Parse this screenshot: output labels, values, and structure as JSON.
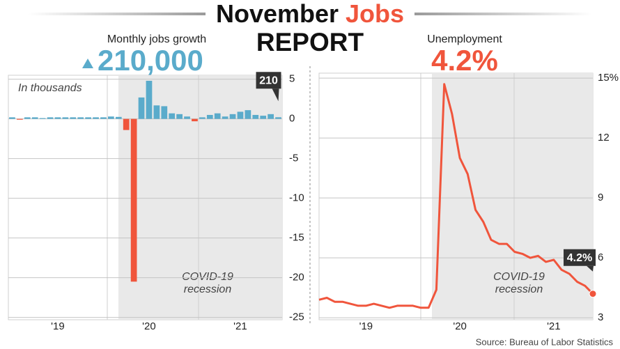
{
  "header": {
    "title": [
      "November",
      "Jobs"
    ],
    "title_line2": "REPORT"
  },
  "chart_data": [
    {
      "type": "bar",
      "title": "Monthly jobs growth",
      "headline": "210,000",
      "note": "In thousands",
      "annotation": [
        "COVID-19",
        "recession"
      ],
      "categories": [
        null,
        null,
        null,
        null,
        null,
        null,
        "'19",
        null,
        null,
        null,
        null,
        null,
        null,
        null,
        null,
        null,
        null,
        null,
        "'20",
        null,
        null,
        null,
        null,
        null,
        null,
        null,
        null,
        null,
        null,
        null,
        "'21",
        null,
        null,
        null,
        null,
        null
      ],
      "values": [
        0.2,
        -0.1,
        0.2,
        0.2,
        0.1,
        0.2,
        0.2,
        0.2,
        0.2,
        0.2,
        0.2,
        0.2,
        0.2,
        0.3,
        0.25,
        -1.4,
        -20.5,
        2.7,
        4.8,
        1.7,
        1.6,
        0.7,
        0.6,
        0.3,
        -0.3,
        0.2,
        0.5,
        0.7,
        0.3,
        0.6,
        0.9,
        1.1,
        0.5,
        0.4,
        0.6,
        0.21
      ],
      "value_labels": [
        null,
        null,
        null,
        null,
        null,
        null,
        null,
        null,
        null,
        null,
        null,
        null,
        null,
        null,
        null,
        null,
        null,
        null,
        null,
        null,
        null,
        null,
        null,
        null,
        null,
        null,
        null,
        null,
        null,
        null,
        null,
        null,
        null,
        null,
        null,
        "210"
      ],
      "color": "#5aabcb",
      "negative_color": "#f0553c",
      "ylim": [
        -25.3,
        5.5
      ],
      "yticks": [
        5,
        0,
        -5,
        -10,
        -15,
        -20,
        -25
      ],
      "grid": true
    },
    {
      "type": "line",
      "title": "Unemployment",
      "headline": "4.2%",
      "annotation": [
        "COVID-19",
        "recession"
      ],
      "categories": [
        null,
        null,
        null,
        null,
        null,
        null,
        "'19",
        null,
        null,
        null,
        null,
        null,
        null,
        null,
        null,
        null,
        null,
        null,
        "'20",
        null,
        null,
        null,
        null,
        null,
        null,
        null,
        null,
        null,
        null,
        null,
        "'21",
        null,
        null,
        null,
        null,
        null
      ],
      "values": [
        3.9,
        4.0,
        3.8,
        3.8,
        3.7,
        3.6,
        3.6,
        3.7,
        3.6,
        3.5,
        3.6,
        3.6,
        3.6,
        3.5,
        3.5,
        4.4,
        14.7,
        13.2,
        11.0,
        10.2,
        8.4,
        7.8,
        6.9,
        6.7,
        6.7,
        6.3,
        6.2,
        6.0,
        6.1,
        5.8,
        5.9,
        5.4,
        5.2,
        4.8,
        4.6,
        4.2
      ],
      "value_labels": [
        null,
        null,
        null,
        null,
        null,
        null,
        null,
        null,
        null,
        null,
        null,
        null,
        null,
        null,
        null,
        null,
        null,
        null,
        null,
        null,
        null,
        null,
        null,
        null,
        null,
        null,
        null,
        null,
        null,
        null,
        null,
        null,
        null,
        null,
        null,
        "4.2%"
      ],
      "color": "#f0553c",
      "ylim": [
        2.9,
        15.25
      ],
      "yticks": [
        {
          "value": 15,
          "label": "15%"
        },
        12,
        9,
        6,
        3
      ],
      "grid": true
    }
  ],
  "source": "Source: Bureau of Labor Statistics"
}
